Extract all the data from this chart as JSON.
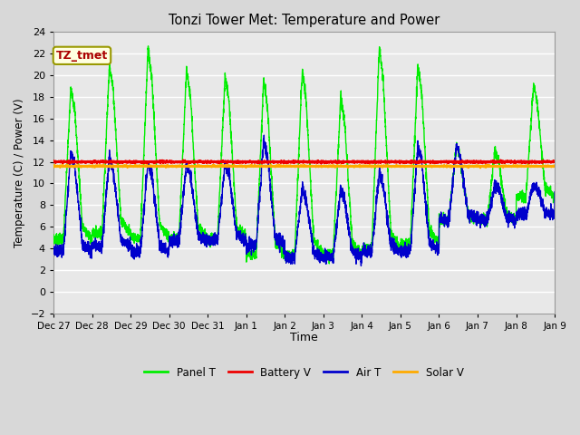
{
  "title": "Tonzi Tower Met: Temperature and Power",
  "xlabel": "Time",
  "ylabel": "Temperature (C) / Power (V)",
  "ylim": [
    -2,
    24
  ],
  "yticks": [
    -2,
    0,
    2,
    4,
    6,
    8,
    10,
    12,
    14,
    16,
    18,
    20,
    22,
    24
  ],
  "fig_bg_color": "#d8d8d8",
  "plot_bg_color": "#e8e8e8",
  "panel_t_color": "#00ee00",
  "battery_v_color": "#ee0000",
  "air_t_color": "#0000cc",
  "solar_v_color": "#ffaa00",
  "annotation_text": "TZ_tmet",
  "annotation_bg": "#ffffe0",
  "annotation_border": "#999900",
  "annotation_text_color": "#aa0000",
  "legend_labels": [
    "Panel T",
    "Battery V",
    "Air T",
    "Solar V"
  ],
  "tick_labels": [
    "Dec 27",
    "Dec 28",
    "Dec 29",
    "Dec 30",
    "Dec 31",
    "Jan 1",
    "Jan 2",
    "Jan 3",
    "Jan 4",
    "Jan 5",
    "Jan 6",
    "Jan 7",
    "Jan 8",
    "Jan 9"
  ]
}
